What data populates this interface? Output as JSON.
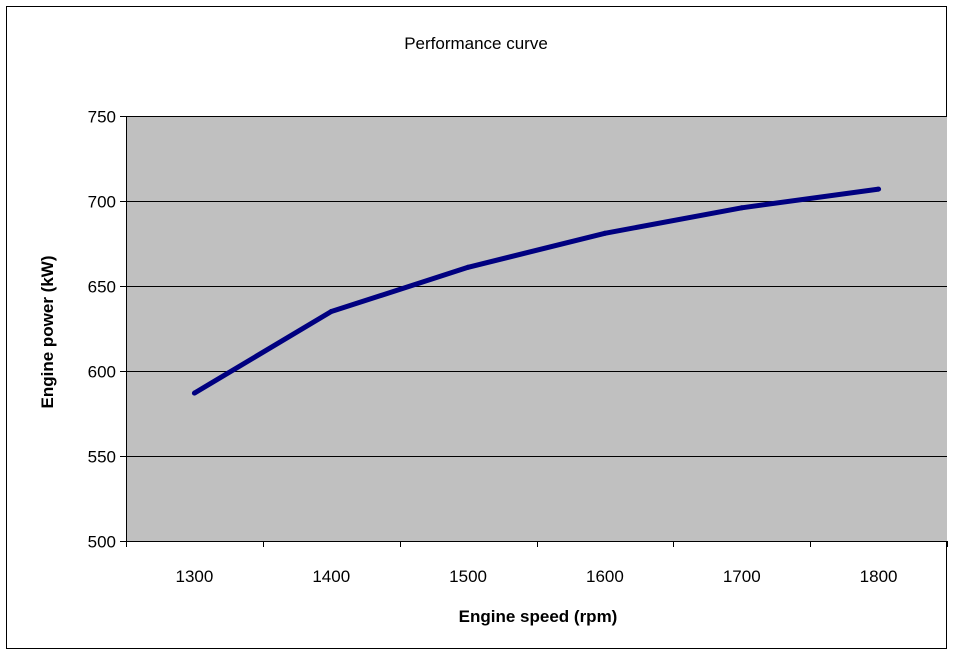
{
  "chart_data": {
    "type": "line",
    "title": "Performance curve",
    "xlabel": "Engine speed (rpm)",
    "ylabel": "Engine power (kW)",
    "categories": [
      "1300",
      "1400",
      "1500",
      "1600",
      "1700",
      "1800"
    ],
    "series": [
      {
        "values": [
          587,
          635,
          661,
          681,
          696,
          707
        ]
      }
    ],
    "ylim": [
      500,
      750
    ],
    "yticks": [
      "500",
      "550",
      "600",
      "650",
      "700",
      "750"
    ],
    "grid": "horizontal",
    "legend": "none",
    "colors": {
      "plot_background": "#c0c0c0",
      "line": "#000080",
      "gridline": "#000000",
      "frame": "#000000"
    }
  }
}
